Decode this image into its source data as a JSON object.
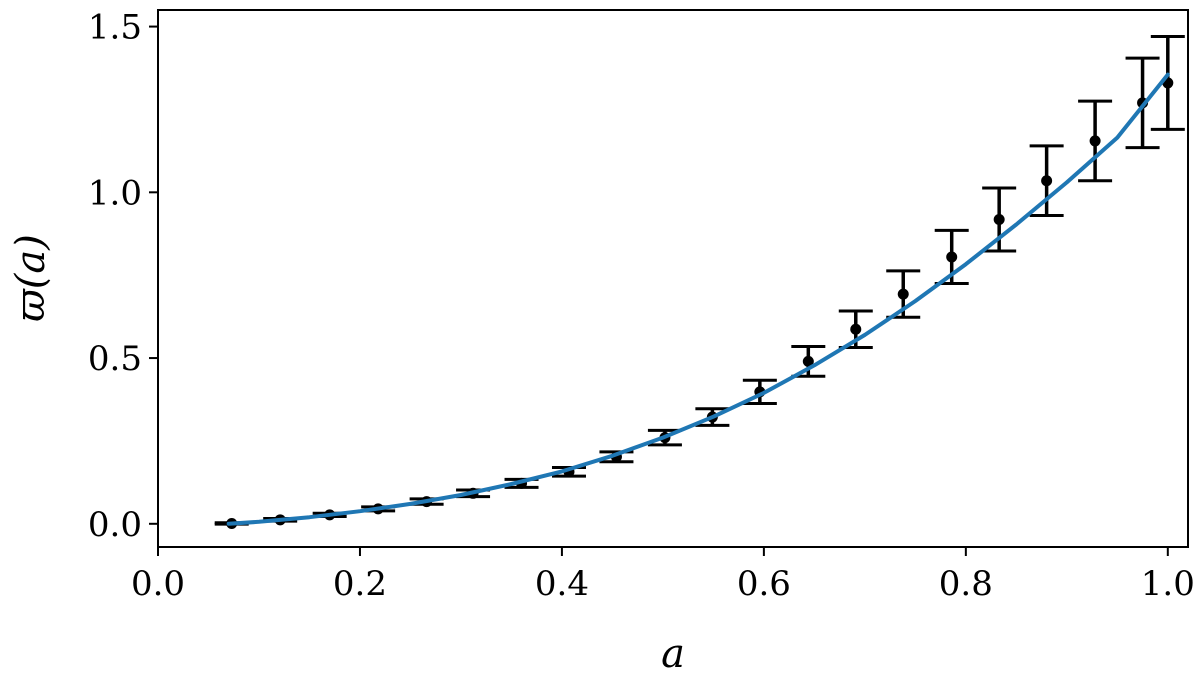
{
  "chart_data": {
    "type": "scatter",
    "title": "",
    "xlabel": "a",
    "ylabel": "ϖ(a)",
    "xlim": [
      0.0,
      1.02
    ],
    "ylim": [
      -0.07,
      1.55
    ],
    "xticks": [
      "0.0",
      "0.2",
      "0.4",
      "0.6",
      "0.8",
      "1.0"
    ],
    "xtick_values": [
      0.0,
      0.2,
      0.4,
      0.6,
      0.8,
      1.0
    ],
    "yticks": [
      "0.0",
      "0.5",
      "1.0",
      "1.5"
    ],
    "ytick_values": [
      0.0,
      0.5,
      1.0,
      1.5
    ],
    "grid": false,
    "legend": "none",
    "series": [
      {
        "kind": "errorbar",
        "color": "#000000",
        "points": [
          {
            "x": 0.073,
            "y": 0.001,
            "err": 0.002
          },
          {
            "x": 0.121,
            "y": 0.012,
            "err": 0.004
          },
          {
            "x": 0.17,
            "y": 0.027,
            "err": 0.005
          },
          {
            "x": 0.218,
            "y": 0.045,
            "err": 0.006
          },
          {
            "x": 0.266,
            "y": 0.067,
            "err": 0.008
          },
          {
            "x": 0.312,
            "y": 0.092,
            "err": 0.01
          },
          {
            "x": 0.36,
            "y": 0.122,
            "err": 0.012
          },
          {
            "x": 0.407,
            "y": 0.157,
            "err": 0.013
          },
          {
            "x": 0.454,
            "y": 0.202,
            "err": 0.015
          },
          {
            "x": 0.502,
            "y": 0.26,
            "err": 0.022
          },
          {
            "x": 0.549,
            "y": 0.322,
            "err": 0.025
          },
          {
            "x": 0.596,
            "y": 0.398,
            "err": 0.035
          },
          {
            "x": 0.644,
            "y": 0.49,
            "err": 0.045
          },
          {
            "x": 0.691,
            "y": 0.587,
            "err": 0.055
          },
          {
            "x": 0.738,
            "y": 0.693,
            "err": 0.07
          },
          {
            "x": 0.786,
            "y": 0.805,
            "err": 0.08
          },
          {
            "x": 0.833,
            "y": 0.918,
            "err": 0.095
          },
          {
            "x": 0.88,
            "y": 1.035,
            "err": 0.105
          },
          {
            "x": 0.928,
            "y": 1.155,
            "err": 0.12
          },
          {
            "x": 0.975,
            "y": 1.27,
            "err": 0.135
          },
          {
            "x": 1.0,
            "y": 1.33,
            "err": 0.14
          }
        ]
      },
      {
        "kind": "line",
        "color": "#1f77b4",
        "x": [
          0.07,
          0.1,
          0.15,
          0.2,
          0.25,
          0.3,
          0.35,
          0.4,
          0.45,
          0.5,
          0.55,
          0.6,
          0.65,
          0.7,
          0.75,
          0.8,
          0.85,
          0.9,
          0.95,
          1.0
        ],
        "y": [
          0.0,
          0.006,
          0.02,
          0.038,
          0.06,
          0.087,
          0.12,
          0.158,
          0.205,
          0.26,
          0.323,
          0.395,
          0.478,
          0.57,
          0.672,
          0.783,
          0.903,
          1.03,
          1.165,
          1.355
        ]
      }
    ]
  }
}
